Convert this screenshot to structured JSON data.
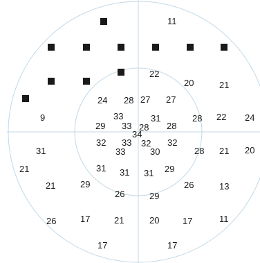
{
  "field_chart": {
    "colors": {
      "circle": "#c2d8e6",
      "axis": "#c2d8e6",
      "text": "#1a1a1a",
      "defect_marker": "#1a1a1a"
    },
    "threshold_values": [
      {
        "id": "v-11a",
        "value": "11"
      },
      {
        "id": "v-22a",
        "value": "22"
      },
      {
        "id": "v-20a",
        "value": "20"
      },
      {
        "id": "v-21a",
        "value": "21"
      },
      {
        "id": "v-24a",
        "value": "24"
      },
      {
        "id": "v-28a",
        "value": "28"
      },
      {
        "id": "v-27a",
        "value": "27"
      },
      {
        "id": "v-27b",
        "value": "27"
      },
      {
        "id": "v-9",
        "value": "9"
      },
      {
        "id": "v-33a",
        "value": "33"
      },
      {
        "id": "v-31a",
        "value": "31"
      },
      {
        "id": "v-28b",
        "value": "28"
      },
      {
        "id": "v-22b",
        "value": "22"
      },
      {
        "id": "v-24b",
        "value": "24"
      },
      {
        "id": "v-29a",
        "value": "29"
      },
      {
        "id": "v-33b",
        "value": "33"
      },
      {
        "id": "v-28c",
        "value": "28"
      },
      {
        "id": "v-28d",
        "value": "28"
      },
      {
        "id": "v-34",
        "value": "34"
      },
      {
        "id": "v-32a",
        "value": "32"
      },
      {
        "id": "v-33c",
        "value": "33"
      },
      {
        "id": "v-32b",
        "value": "32"
      },
      {
        "id": "v-32c",
        "value": "32"
      },
      {
        "id": "v-31b",
        "value": "31"
      },
      {
        "id": "v-28e",
        "value": "28"
      },
      {
        "id": "v-21b",
        "value": "21"
      },
      {
        "id": "v-20b",
        "value": "20"
      },
      {
        "id": "v-33d",
        "value": "33"
      },
      {
        "id": "v-30",
        "value": "30"
      },
      {
        "id": "v-21c",
        "value": "21"
      },
      {
        "id": "v-31c",
        "value": "31"
      },
      {
        "id": "v-31d",
        "value": "31"
      },
      {
        "id": "v-31e",
        "value": "31"
      },
      {
        "id": "v-29b",
        "value": "29"
      },
      {
        "id": "v-21d",
        "value": "21"
      },
      {
        "id": "v-29c",
        "value": "29"
      },
      {
        "id": "v-26a",
        "value": "26"
      },
      {
        "id": "v-13",
        "value": "13"
      },
      {
        "id": "v-26b",
        "value": "26"
      },
      {
        "id": "v-29d",
        "value": "29"
      },
      {
        "id": "v-26c",
        "value": "26"
      },
      {
        "id": "v-17a",
        "value": "17"
      },
      {
        "id": "v-21e",
        "value": "21"
      },
      {
        "id": "v-20c",
        "value": "20"
      },
      {
        "id": "v-17b",
        "value": "17"
      },
      {
        "id": "v-11b",
        "value": "11"
      },
      {
        "id": "v-17c",
        "value": "17"
      },
      {
        "id": "v-17d",
        "value": "17"
      }
    ],
    "defect_markers": 12
  }
}
